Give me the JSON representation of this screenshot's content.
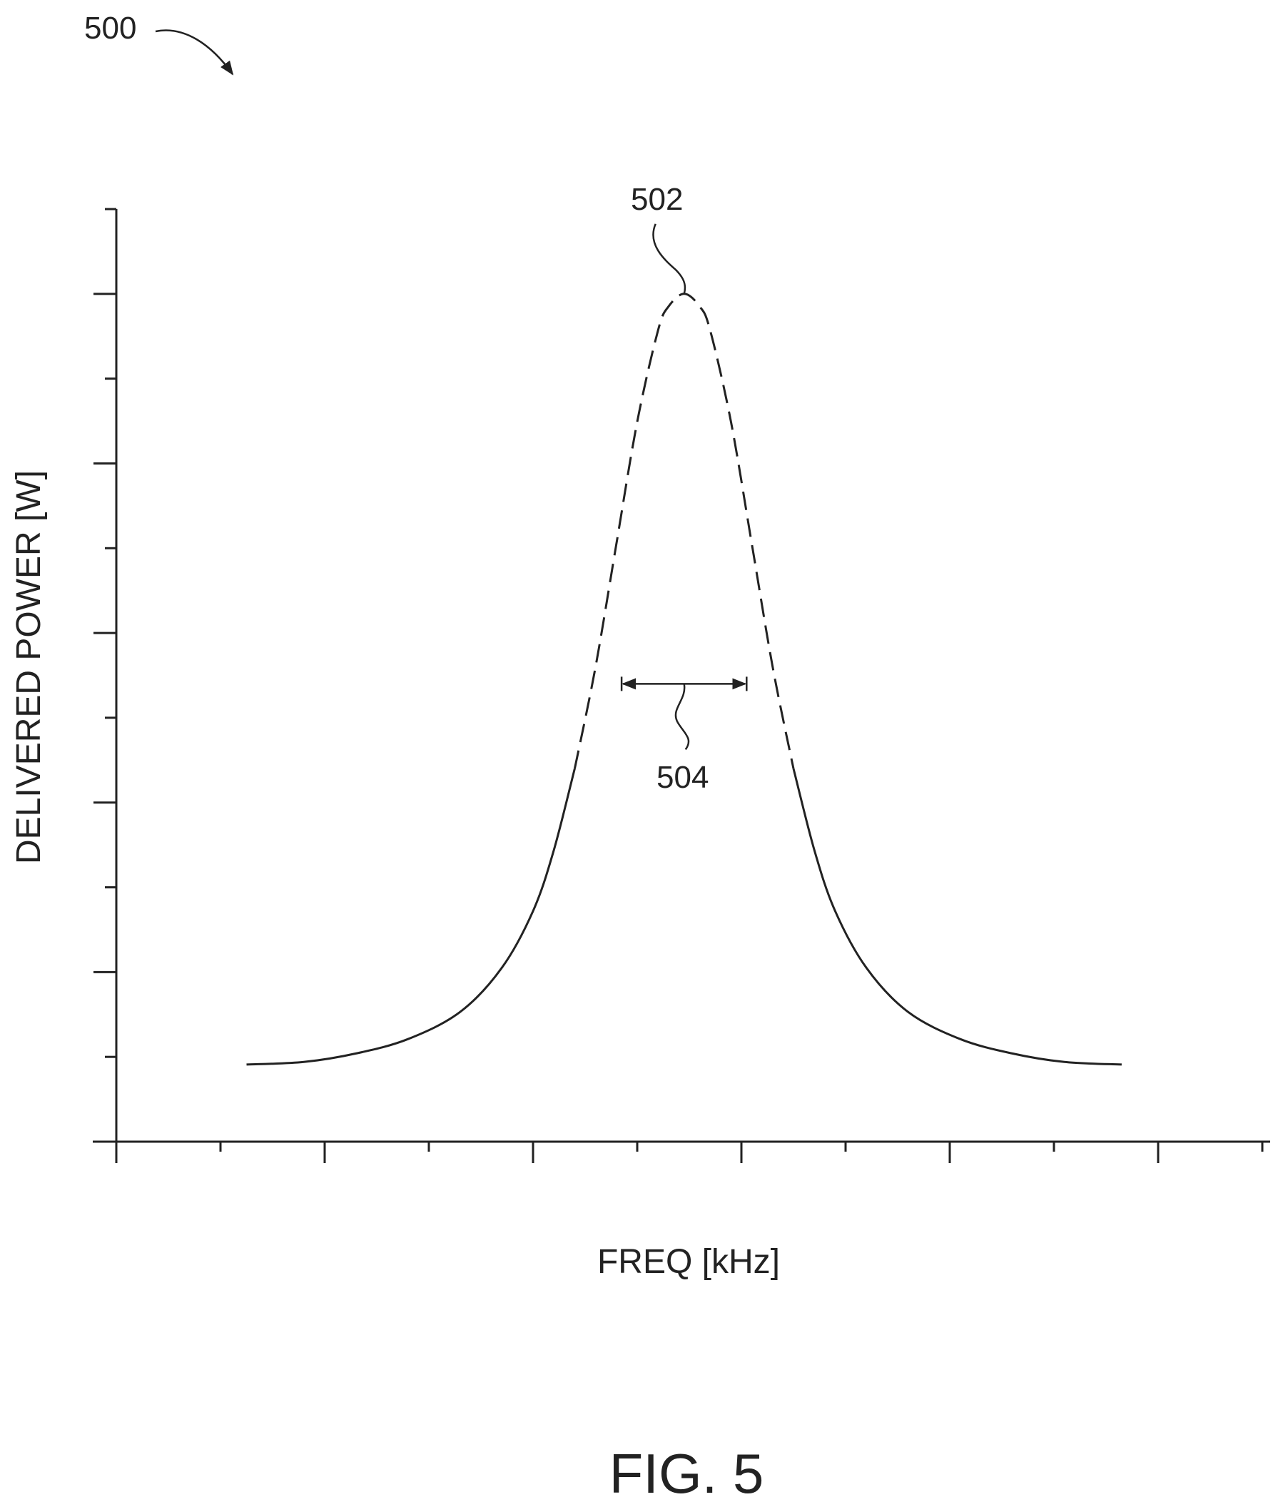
{
  "figure": {
    "ref_number": "500",
    "caption": "FIG. 5"
  },
  "annotations": {
    "peak_ref": "502",
    "bandwidth_ref": "504"
  },
  "chart_data": {
    "type": "line",
    "title": "",
    "xlabel": "FREQ [kHz]",
    "ylabel": "DELIVERED POWER [W]",
    "xlim": [
      0,
      11
    ],
    "ylim": [
      0,
      11
    ],
    "x_ticks": [
      0,
      1,
      2,
      3,
      4,
      5,
      6,
      7,
      8,
      9,
      10,
      11
    ],
    "y_ticks": [
      0,
      1,
      2,
      3,
      4,
      5,
      6,
      7,
      8,
      9,
      10,
      11
    ],
    "tick_labels_shown": false,
    "grid": false,
    "series": [
      {
        "style": "solid-tails-dashed-peak",
        "peak": {
          "x": 5.45,
          "y": 10.0
        },
        "dashed_threshold_y": 4.0,
        "points": [
          {
            "x": 1.25,
            "y": 0.91
          },
          {
            "x": 1.8,
            "y": 0.94
          },
          {
            "x": 2.3,
            "y": 1.04
          },
          {
            "x": 2.8,
            "y": 1.21
          },
          {
            "x": 3.3,
            "y": 1.53
          },
          {
            "x": 3.7,
            "y": 2.05
          },
          {
            "x": 4.0,
            "y": 2.72
          },
          {
            "x": 4.2,
            "y": 3.44
          },
          {
            "x": 4.4,
            "y": 4.4
          },
          {
            "x": 4.6,
            "y": 5.6
          },
          {
            "x": 4.8,
            "y": 7.05
          },
          {
            "x": 5.0,
            "y": 8.49
          },
          {
            "x": 5.2,
            "y": 9.57
          },
          {
            "x": 5.3,
            "y": 9.85
          },
          {
            "x": 5.45,
            "y": 10.0
          },
          {
            "x": 5.6,
            "y": 9.85
          },
          {
            "x": 5.7,
            "y": 9.57
          },
          {
            "x": 5.9,
            "y": 8.49
          },
          {
            "x": 6.1,
            "y": 7.05
          },
          {
            "x": 6.3,
            "y": 5.6
          },
          {
            "x": 6.5,
            "y": 4.4
          },
          {
            "x": 6.7,
            "y": 3.44
          },
          {
            "x": 6.9,
            "y": 2.72
          },
          {
            "x": 7.2,
            "y": 2.05
          },
          {
            "x": 7.6,
            "y": 1.53
          },
          {
            "x": 8.1,
            "y": 1.21
          },
          {
            "x": 8.6,
            "y": 1.04
          },
          {
            "x": 9.1,
            "y": 0.94
          },
          {
            "x": 9.65,
            "y": 0.91
          }
        ]
      }
    ],
    "bandwidth_marker": {
      "y": 5.4,
      "x_start": 4.85,
      "x_end": 6.05,
      "arrows": "both"
    }
  }
}
